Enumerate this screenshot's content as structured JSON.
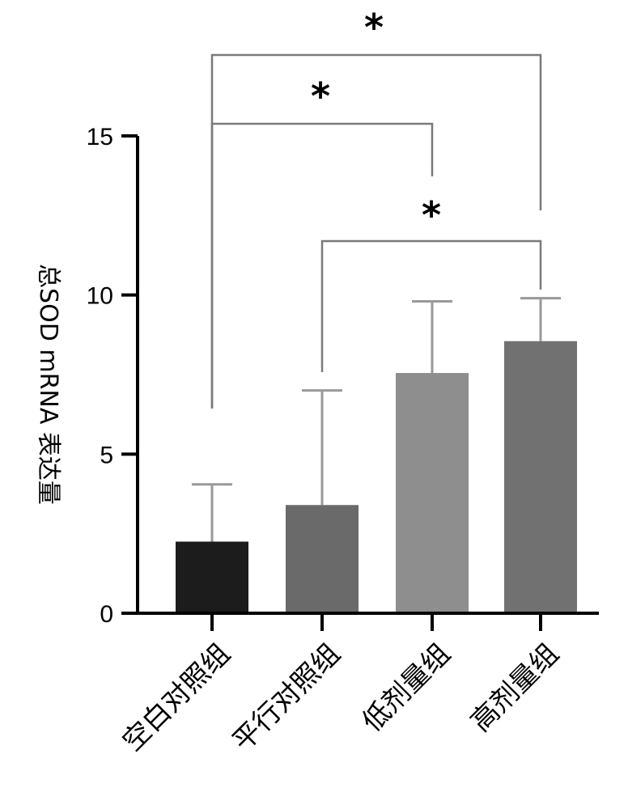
{
  "chart_data": {
    "type": "bar",
    "title": "",
    "xlabel": "",
    "ylabel": "总SOD mRNA 表达量",
    "ylim": [
      0,
      15
    ],
    "yticks": [
      0,
      5,
      10,
      15
    ],
    "categories": [
      "空白对照组",
      "平行对照组",
      "低剂量组",
      "高剂量组"
    ],
    "values": [
      2.25,
      3.4,
      7.55,
      8.55
    ],
    "errors": [
      1.8,
      3.6,
      2.25,
      1.35
    ],
    "colors": [
      "#1c1c1c",
      "#6a6a6a",
      "#8e8e8e",
      "#717171"
    ],
    "error_bar_color": "#999999",
    "grid": false,
    "legend": "none",
    "significance": [
      {
        "from": 0,
        "to": 3,
        "label": "*"
      },
      {
        "from": 0,
        "to": 2,
        "label": "*"
      },
      {
        "from": 1,
        "to": 3,
        "label": "*"
      }
    ]
  }
}
